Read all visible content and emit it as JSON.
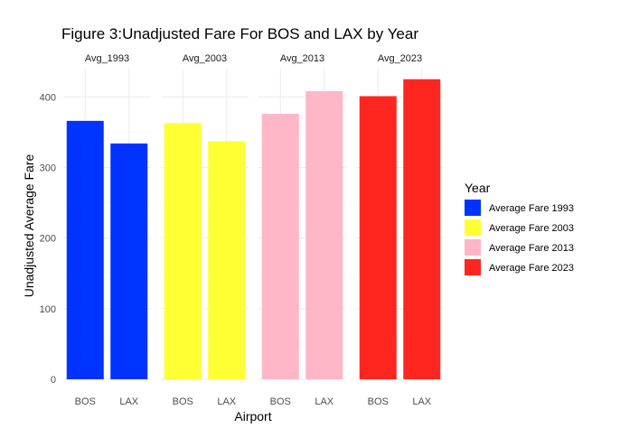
{
  "chart_data": {
    "type": "bar",
    "title": "Figure 3:Unadjusted Fare For BOS and LAX by Year",
    "xlabel": "Airport",
    "ylabel": "Unadjusted Average Fare",
    "ylim": [
      0,
      440
    ],
    "yticks": [
      0,
      100,
      200,
      300,
      400
    ],
    "grid": true,
    "categories": [
      "BOS",
      "LAX"
    ],
    "facets": [
      "Avg_1993",
      "Avg_2003",
      "Avg_2013",
      "Avg_2023"
    ],
    "series": [
      {
        "name": "Average Fare 1993",
        "facet": "Avg_1993",
        "color": "#0033ff",
        "values": [
          366,
          334
        ]
      },
      {
        "name": "Average Fare 2003",
        "facet": "Avg_2003",
        "color": "#ffff33",
        "values": [
          363,
          337
        ]
      },
      {
        "name": "Average Fare 2013",
        "facet": "Avg_2013",
        "color": "#ffb6c6",
        "values": [
          376,
          408
        ]
      },
      {
        "name": "Average Fare 2023",
        "facet": "Avg_2023",
        "color": "#ff2620",
        "values": [
          401,
          425
        ]
      }
    ],
    "legend": {
      "title": "Year",
      "position": "right"
    }
  }
}
